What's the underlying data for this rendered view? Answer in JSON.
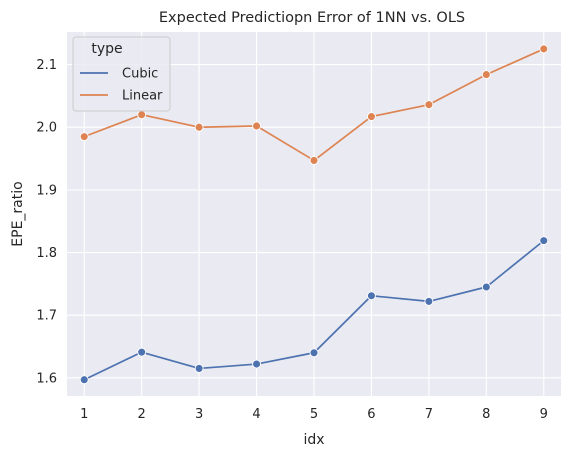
{
  "chart_data": {
    "type": "line",
    "title": "Expected Predictiopn Error of 1NN vs. OLS",
    "xlabel": "idx",
    "ylabel": "EPE_ratio",
    "x": [
      1,
      2,
      3,
      4,
      5,
      6,
      7,
      8,
      9
    ],
    "xlim": [
      0.7,
      9.3
    ],
    "ylim": [
      1.571,
      2.152
    ],
    "xticks": [
      1,
      2,
      3,
      4,
      5,
      6,
      7,
      8,
      9
    ],
    "yticks": [
      1.6,
      1.7,
      1.8,
      1.9,
      2.0,
      2.1
    ],
    "ytick_labels": [
      "1.6",
      "1.7",
      "1.8",
      "1.9",
      "2.0",
      "2.1"
    ],
    "grid": true,
    "legend": {
      "title": "type",
      "placement": "top-left"
    },
    "series": [
      {
        "name": "Cubic",
        "color": "#4c72b0",
        "marker": "circle",
        "values": [
          1.597,
          1.641,
          1.615,
          1.622,
          1.64,
          1.731,
          1.722,
          1.745,
          1.819
        ]
      },
      {
        "name": "Linear",
        "color": "#dd8452",
        "marker": "circle",
        "values": [
          1.985,
          2.02,
          2.0,
          2.002,
          1.947,
          2.017,
          2.036,
          2.084,
          2.125
        ]
      }
    ],
    "style": {
      "plot_background": "#eaeaf2",
      "grid_color": "#ffffff"
    }
  }
}
